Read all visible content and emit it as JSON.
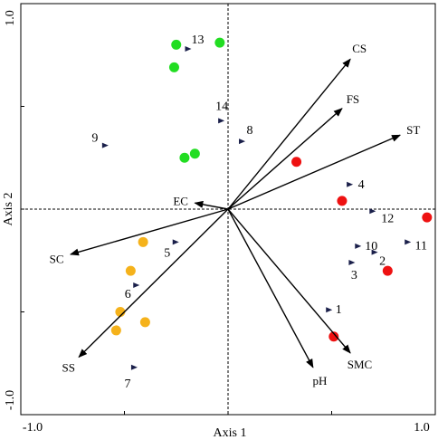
{
  "chart_data": {
    "type": "scatter",
    "subtype": "ordination-biplot",
    "xlabel": "Axis 1",
    "ylabel": "Axis 2",
    "xlim": [
      -1.0,
      1.0
    ],
    "ylim": [
      -1.0,
      1.0
    ],
    "x_ticks": [
      {
        "value": -1.0,
        "label": "-1.0"
      },
      {
        "value": 1.0,
        "label": "1.0"
      }
    ],
    "y_ticks": [
      {
        "value": -1.0,
        "label": "-1.0"
      },
      {
        "value": 1.0,
        "label": "1.0"
      }
    ],
    "reference_lines": "dashed lines at x = 0 and y = 0",
    "vectors": [
      {
        "label": "CS",
        "x": 0.59,
        "y": 0.73
      },
      {
        "label": "FS",
        "x": 0.55,
        "y": 0.49
      },
      {
        "label": "ST",
        "x": 0.83,
        "y": 0.36
      },
      {
        "label": "EC",
        "x": -0.16,
        "y": 0.03
      },
      {
        "label": "SC",
        "x": -0.76,
        "y": -0.22
      },
      {
        "label": "SS",
        "x": -0.72,
        "y": -0.72
      },
      {
        "label": "pH",
        "x": 0.41,
        "y": -0.77
      },
      {
        "label": "SMC",
        "x": 0.59,
        "y": -0.7
      }
    ],
    "sample_points": [
      {
        "label": "1",
        "x": 0.49,
        "y": -0.49
      },
      {
        "label": "2",
        "x": 0.71,
        "y": -0.21
      },
      {
        "label": "3",
        "x": 0.6,
        "y": -0.26
      },
      {
        "label": "4",
        "x": 0.59,
        "y": 0.12
      },
      {
        "label": "5",
        "x": -0.25,
        "y": -0.16
      },
      {
        "label": "6",
        "x": -0.44,
        "y": -0.37
      },
      {
        "label": "7",
        "x": -0.45,
        "y": -0.77
      },
      {
        "label": "8",
        "x": 0.07,
        "y": 0.33
      },
      {
        "label": "9",
        "x": -0.59,
        "y": 0.31
      },
      {
        "label": "10",
        "x": 0.63,
        "y": -0.18
      },
      {
        "label": "11",
        "x": 0.87,
        "y": -0.16
      },
      {
        "label": "12",
        "x": 0.7,
        "y": -0.01
      },
      {
        "label": "13",
        "x": -0.19,
        "y": 0.78
      },
      {
        "label": "14",
        "x": -0.03,
        "y": 0.43
      }
    ],
    "series": [
      {
        "color": "#22dd22",
        "points": [
          [
            -0.25,
            0.8
          ],
          [
            -0.04,
            0.81
          ],
          [
            -0.26,
            0.69
          ],
          [
            -0.16,
            0.27
          ],
          [
            -0.21,
            0.25
          ]
        ]
      },
      {
        "color": "#ee1111",
        "points": [
          [
            0.33,
            0.23
          ],
          [
            0.55,
            0.04
          ],
          [
            0.96,
            -0.04
          ],
          [
            0.77,
            -0.3
          ],
          [
            0.51,
            -0.62
          ]
        ]
      },
      {
        "color": "#f5b21b",
        "points": [
          [
            -0.41,
            -0.16
          ],
          [
            -0.47,
            -0.3
          ],
          [
            -0.52,
            -0.5
          ],
          [
            -0.4,
            -0.55
          ],
          [
            -0.54,
            -0.59
          ]
        ]
      }
    ],
    "vector_color": "#000000",
    "sample_marker_color": "#1a1f4a"
  }
}
